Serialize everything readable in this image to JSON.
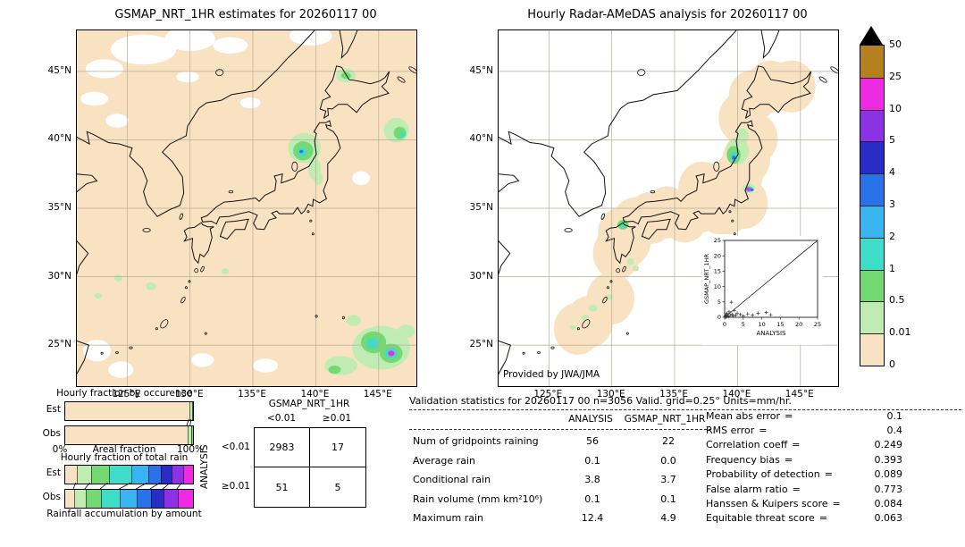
{
  "palette": {
    "white": "#ffffff",
    "c0": "#f9e2c1",
    "c1": "#c0ecb4",
    "c2": "#72d973",
    "c3": "#3eddc9",
    "c4": "#38b5f0",
    "c5": "#2a72ea",
    "c6": "#2a2cc8",
    "c7": "#8c32e4",
    "c8": "#ee2ae2",
    "c9": "#b5811f",
    "black": "#000000"
  },
  "left_map": {
    "title": "GSMAP_NRT_1HR estimates for 20260117 00",
    "background": "c0",
    "lat_ticks": [
      {
        "label": "45°N",
        "lat": 45
      },
      {
        "label": "40°N",
        "lat": 40
      },
      {
        "label": "35°N",
        "lat": 35
      },
      {
        "label": "30°N",
        "lat": 30
      },
      {
        "label": "25°N",
        "lat": 25
      }
    ],
    "lon_ticks": [
      {
        "label": "125°E",
        "lon": 125
      },
      {
        "label": "130°E",
        "lon": 130
      },
      {
        "label": "135°E",
        "lon": 135
      },
      {
        "label": "140°E",
        "lon": 140
      },
      {
        "label": "145°E",
        "lon": 145
      }
    ],
    "blobs": [
      [
        126.3,
        46.6,
        2.6,
        1.1,
        "white"
      ],
      [
        130.0,
        47.4,
        2.0,
        0.9,
        "white"
      ],
      [
        123.2,
        45.2,
        1.5,
        0.7,
        "white"
      ],
      [
        133.2,
        46.9,
        1.4,
        0.6,
        "white"
      ],
      [
        139.6,
        47.6,
        1.7,
        0.7,
        "white"
      ],
      [
        122.4,
        43.0,
        1.1,
        0.5,
        "white"
      ],
      [
        124.2,
        41.4,
        0.9,
        0.5,
        "white"
      ],
      [
        134.8,
        42.7,
        0.8,
        0.4,
        "white"
      ],
      [
        129.8,
        44.6,
        0.9,
        0.4,
        "white"
      ],
      [
        143.6,
        37.2,
        0.7,
        0.5,
        "white"
      ],
      [
        122.6,
        24.6,
        1.1,
        0.8,
        "white"
      ],
      [
        124.5,
        23.2,
        1.0,
        0.6,
        "white"
      ],
      [
        131.0,
        23.9,
        0.9,
        0.5,
        "white"
      ],
      [
        136.0,
        23.5,
        1.0,
        0.5,
        "white"
      ],
      [
        142.4,
        44.7,
        0.8,
        0.5,
        "c1"
      ],
      [
        142.4,
        44.7,
        0.4,
        0.25,
        "c2"
      ],
      [
        139.1,
        39.4,
        1.3,
        1.1,
        "c1"
      ],
      [
        139.0,
        39.2,
        0.8,
        0.7,
        "c2"
      ],
      [
        138.9,
        39.1,
        0.35,
        0.3,
        "c3"
      ],
      [
        138.85,
        39.15,
        0.15,
        0.12,
        "c5"
      ],
      [
        139.9,
        37.9,
        0.5,
        0.8,
        "c1"
      ],
      [
        140.2,
        37.2,
        0.35,
        0.5,
        "c1"
      ],
      [
        146.4,
        40.7,
        1.0,
        0.9,
        "c1"
      ],
      [
        146.7,
        40.5,
        0.5,
        0.45,
        "c2"
      ],
      [
        146.9,
        40.4,
        0.22,
        0.18,
        "c3"
      ],
      [
        145.2,
        24.8,
        2.3,
        1.6,
        "c1"
      ],
      [
        144.6,
        25.2,
        1.0,
        0.8,
        "c2"
      ],
      [
        144.5,
        25.1,
        0.5,
        0.4,
        "c3"
      ],
      [
        146.0,
        24.4,
        0.9,
        0.7,
        "c2"
      ],
      [
        146.0,
        24.4,
        0.5,
        0.4,
        "c3"
      ],
      [
        146.0,
        24.4,
        0.26,
        0.2,
        "c8"
      ],
      [
        142.0,
        23.5,
        1.3,
        0.7,
        "c1"
      ],
      [
        141.5,
        23.2,
        0.5,
        0.3,
        "c2"
      ],
      [
        147.2,
        26.0,
        0.7,
        0.5,
        "c1"
      ],
      [
        143.0,
        26.8,
        0.6,
        0.4,
        "c1"
      ],
      [
        126.9,
        29.3,
        0.4,
        0.3,
        "c1"
      ],
      [
        124.3,
        29.9,
        0.35,
        0.25,
        "c1"
      ],
      [
        122.7,
        28.6,
        0.3,
        0.2,
        "c1"
      ],
      [
        132.8,
        30.4,
        0.3,
        0.22,
        "c1"
      ]
    ]
  },
  "right_map": {
    "title": "Hourly Radar-AMeDAS analysis for 20260117 00",
    "credit": "Provided by JWA/JMA",
    "background": "white",
    "lat_ticks": [
      {
        "label": "45°N",
        "lat": 45
      },
      {
        "label": "40°N",
        "lat": 40
      },
      {
        "label": "35°N",
        "lat": 35
      },
      {
        "label": "30°N",
        "lat": 30
      },
      {
        "label": "25°N",
        "lat": 25
      }
    ],
    "lon_ticks": [
      {
        "label": "125°E",
        "lon": 125
      },
      {
        "label": "130°E",
        "lon": 130
      },
      {
        "label": "135°E",
        "lon": 135
      },
      {
        "label": "140°E",
        "lon": 140
      },
      {
        "label": "145°E",
        "lon": 145
      }
    ],
    "coverage": {
      "color": "c0",
      "radius_deg": 1.9,
      "centers": [
        [
          144.3,
          43.9
        ],
        [
          142.6,
          43.9
        ],
        [
          141.2,
          43.2
        ],
        [
          140.4,
          41.6
        ],
        [
          141.3,
          40.1
        ],
        [
          140.7,
          38.6
        ],
        [
          140.1,
          37.4
        ],
        [
          139.9,
          36.1
        ],
        [
          138.4,
          36.4
        ],
        [
          137.2,
          36.5
        ],
        [
          136.9,
          35.1
        ],
        [
          135.8,
          34.4
        ],
        [
          134.4,
          34.7
        ],
        [
          133.1,
          34.3
        ],
        [
          131.9,
          33.9
        ],
        [
          130.8,
          33.2
        ],
        [
          130.4,
          31.7
        ],
        [
          131.2,
          32.6
        ],
        [
          129.9,
          28.4
        ],
        [
          128.2,
          26.7
        ],
        [
          127.3,
          26.2
        ],
        [
          139.2,
          35.0
        ],
        [
          140.5,
          35.4
        ],
        [
          138.6,
          35.0
        ]
      ]
    },
    "blobs": [
      [
        140.0,
        39.2,
        0.9,
        1.0,
        "c1"
      ],
      [
        139.7,
        38.9,
        0.55,
        0.65,
        "c2"
      ],
      [
        139.75,
        38.75,
        0.3,
        0.35,
        "c3"
      ],
      [
        139.7,
        38.7,
        0.14,
        0.15,
        "c5"
      ],
      [
        140.4,
        40.3,
        0.5,
        0.55,
        "c1"
      ],
      [
        140.9,
        36.45,
        0.5,
        0.35,
        "c1"
      ],
      [
        140.9,
        36.4,
        0.3,
        0.22,
        "c3"
      ],
      [
        140.85,
        36.4,
        0.18,
        0.14,
        "c8"
      ],
      [
        141.15,
        36.35,
        0.13,
        0.11,
        "c5"
      ],
      [
        130.9,
        33.8,
        0.45,
        0.35,
        "c2"
      ],
      [
        130.9,
        33.8,
        0.2,
        0.16,
        "c3"
      ],
      [
        131.5,
        31.1,
        0.3,
        0.25,
        "c1"
      ],
      [
        131.9,
        30.6,
        0.25,
        0.2,
        "c1"
      ],
      [
        128.5,
        27.7,
        0.35,
        0.25,
        "c1"
      ],
      [
        127.9,
        27.0,
        0.3,
        0.2,
        "c1"
      ],
      [
        126.9,
        26.3,
        0.25,
        0.18,
        "c1"
      ],
      [
        129.8,
        28.5,
        0.3,
        0.2,
        "c1"
      ]
    ]
  },
  "colorbar": {
    "boundary_labels": [
      "50",
      "25",
      "10",
      "5",
      "4",
      "3",
      "2",
      "1",
      "0.5",
      "0.01",
      "0"
    ],
    "band_colors_top_to_bottom": [
      "c9",
      "c8",
      "c7",
      "c6",
      "c5",
      "c4",
      "c3",
      "c2",
      "c1",
      "c0"
    ],
    "overflow_triangle_color": "black"
  },
  "chart_data": {
    "occurrence": {
      "type": "bar",
      "title": "Hourly fraction by occurence",
      "rows": [
        {
          "label": "Est",
          "segments": [
            [
              "c0",
              97.4
            ],
            [
              "c1",
              1.8
            ],
            [
              "c2",
              0.8
            ]
          ]
        },
        {
          "label": "Obs",
          "segments": [
            [
              "c0",
              95.8
            ],
            [
              "c1",
              2.6
            ],
            [
              "c2",
              1.6
            ]
          ]
        }
      ],
      "axis": {
        "left": "0%",
        "center": "Areal fraction",
        "right": "100%"
      }
    },
    "total_rain": {
      "type": "bar",
      "title": "Hourly fraction of total rain",
      "rows": [
        {
          "label": "Est",
          "segments": [
            [
              "c0",
              9
            ],
            [
              "c1",
              11
            ],
            [
              "c2",
              14
            ],
            [
              "c3",
              18
            ],
            [
              "c4",
              13
            ],
            [
              "c5",
              10
            ],
            [
              "c6",
              8
            ],
            [
              "c7",
              9
            ],
            [
              "c8",
              8
            ]
          ]
        },
        {
          "label": "Obs",
          "segments": [
            [
              "c0",
              7
            ],
            [
              "c1",
              9
            ],
            [
              "c2",
              12
            ],
            [
              "c3",
              15
            ],
            [
              "c4",
              13
            ],
            [
              "c5",
              11
            ],
            [
              "c6",
              10
            ],
            [
              "c7",
              11
            ],
            [
              "c8",
              12
            ]
          ]
        }
      ],
      "caption": "Rainfall accumulation by amount"
    },
    "contingency": {
      "type": "table",
      "title": "GSMAP_NRT_1HR",
      "row_axis_label": "ANALYSIS",
      "col_headers": [
        "<0.01",
        "≥0.01"
      ],
      "row_headers": [
        "<0.01",
        "≥0.01"
      ],
      "cells": [
        [
          "2983",
          "17"
        ],
        [
          "51",
          "5"
        ]
      ]
    },
    "validation": {
      "type": "table",
      "title": "Validation statistics for 20260117 00  n=3056 Valid. grid=0.25° Units=mm/hr.",
      "col_headers": [
        "ANALYSIS",
        "GSMAP_NRT_1HR"
      ],
      "rows": [
        {
          "label": "Num of gridpoints raining",
          "analysis": "56",
          "gsmap": "22"
        },
        {
          "label": "Average rain",
          "analysis": "0.1",
          "gsmap": "0.0"
        },
        {
          "label": "Conditional rain",
          "analysis": "3.8",
          "gsmap": "3.7"
        },
        {
          "label": "Rain volume (mm km²10⁶)",
          "analysis": "0.1",
          "gsmap": "0.1"
        },
        {
          "label": "Maximum rain",
          "analysis": "12.4",
          "gsmap": "4.9"
        }
      ],
      "stats": [
        {
          "label": "Mean abs error",
          "value": "0.1"
        },
        {
          "label": "RMS error",
          "value": "0.4"
        },
        {
          "label": "Correlation coeff",
          "value": "0.249"
        },
        {
          "label": "Frequency bias",
          "value": "0.393"
        },
        {
          "label": "Probability of detection",
          "value": "0.089"
        },
        {
          "label": "False alarm ratio",
          "value": "0.773"
        },
        {
          "label": "Hanssen & Kuipers score",
          "value": "0.084"
        },
        {
          "label": "Equitable threat score",
          "value": "0.063"
        }
      ]
    },
    "inset_scatter": {
      "type": "scatter",
      "xlabel": "ANALYSIS",
      "ylabel": "GSMAP_NRT_1HR",
      "ticks": [
        0,
        5,
        10,
        15,
        20,
        25
      ],
      "xlim": [
        0,
        25
      ],
      "ylim": [
        0,
        25
      ],
      "identity_line": true,
      "points": [
        [
          0.1,
          0.1
        ],
        [
          0.2,
          0.4
        ],
        [
          0.3,
          0.1
        ],
        [
          0.4,
          0.8
        ],
        [
          0.5,
          0.2
        ],
        [
          0.6,
          1.2
        ],
        [
          0.8,
          0.5
        ],
        [
          1.0,
          0.2
        ],
        [
          1.2,
          1.8
        ],
        [
          1.5,
          0.6
        ],
        [
          1.8,
          4.9
        ],
        [
          2.0,
          1.0
        ],
        [
          2.3,
          0.4
        ],
        [
          2.6,
          2.2
        ],
        [
          3.0,
          0.7
        ],
        [
          3.4,
          1.4
        ],
        [
          4.2,
          0.9
        ],
        [
          5.0,
          0.4
        ],
        [
          6.2,
          1.1
        ],
        [
          7.5,
          0.7
        ],
        [
          9.0,
          1.3
        ],
        [
          11.2,
          1.6
        ],
        [
          12.4,
          0.8
        ]
      ]
    }
  }
}
